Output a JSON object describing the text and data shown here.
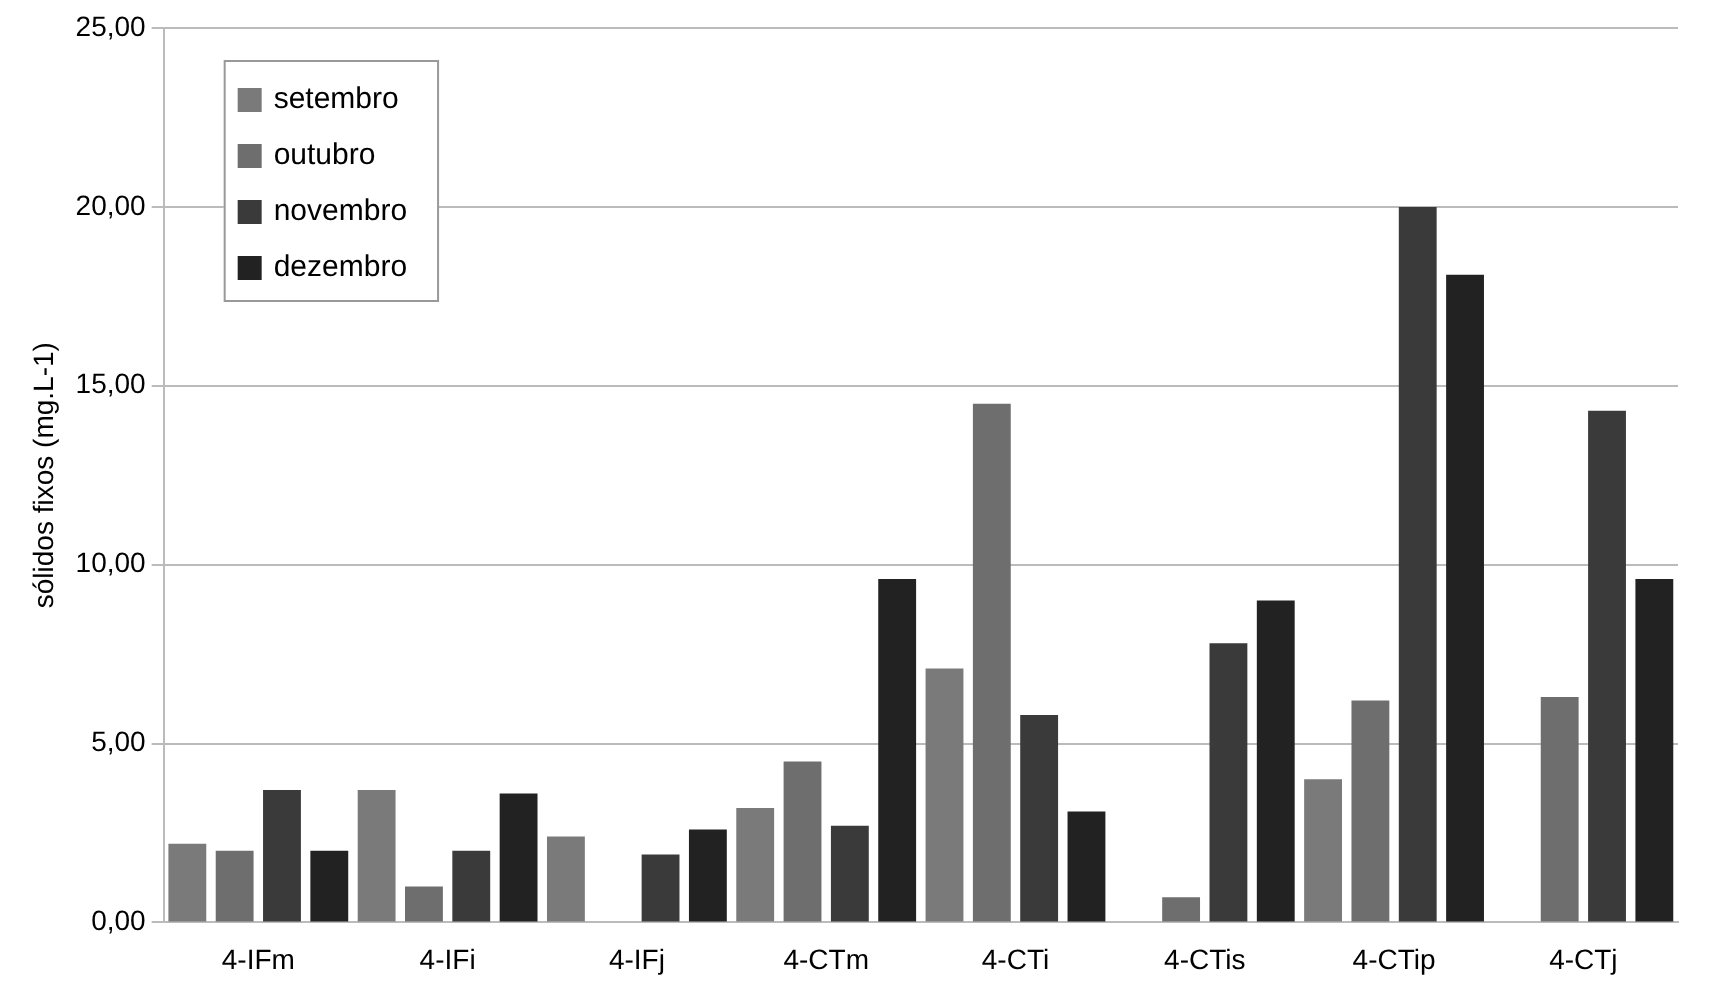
{
  "chart_data": {
    "type": "bar",
    "ylabel": "sólidos fixos (mg.L-1)",
    "categories": [
      "4-IFm",
      "4-IFi",
      "4-IFj",
      "4-CTm",
      "4-CTi",
      "4-CTis",
      "4-CTip",
      "4-CTj"
    ],
    "series": [
      {
        "name": "setembro",
        "color": "#7a7a7a",
        "values": [
          2.2,
          3.7,
          2.4,
          3.2,
          7.1,
          null,
          4.0,
          null
        ]
      },
      {
        "name": "outubro",
        "color": "#6e6e6e",
        "values": [
          2.0,
          1.0,
          null,
          4.5,
          14.5,
          0.7,
          6.2,
          6.3
        ]
      },
      {
        "name": "novembro",
        "color": "#3a3a3a",
        "values": [
          3.7,
          2.0,
          1.9,
          2.7,
          5.8,
          7.8,
          20.0,
          14.3
        ]
      },
      {
        "name": "dezembro",
        "color": "#222222",
        "values": [
          2.0,
          3.6,
          2.6,
          9.6,
          3.1,
          9.0,
          18.1,
          9.6
        ]
      }
    ],
    "ylim": [
      0,
      25
    ],
    "yticks": [
      {
        "value": 0,
        "label": "0,00"
      },
      {
        "value": 5,
        "label": "5,00"
      },
      {
        "value": 10,
        "label": "10,00"
      },
      {
        "value": 15,
        "label": "15,00"
      },
      {
        "value": 20,
        "label": "20,00"
      },
      {
        "value": 25,
        "label": "25,00"
      }
    ],
    "grid": "y",
    "legend": "top left"
  }
}
